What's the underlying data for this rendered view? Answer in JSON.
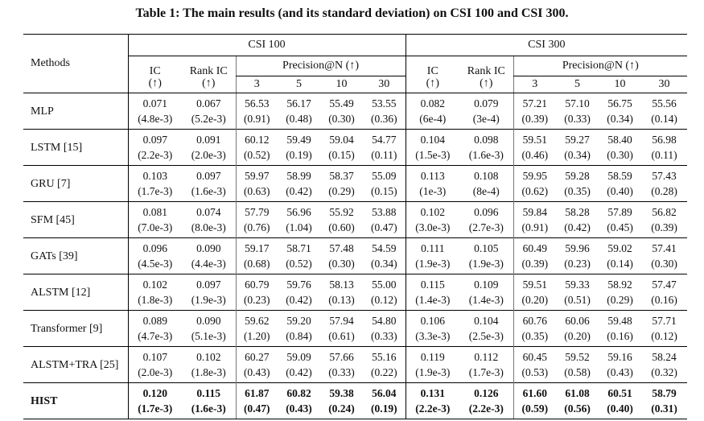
{
  "caption": "Table 1: The main results (and its standard deviation) on CSI 100 and CSI 300.",
  "header": {
    "methods": "Methods",
    "group1": "CSI 100",
    "group2": "CSI 300",
    "ic": "IC",
    "rank_ic": "Rank IC",
    "arrow": "(↑)",
    "precision": "Precision@N (↑)",
    "n_values": [
      "3",
      "5",
      "10",
      "30"
    ]
  },
  "rows": [
    {
      "method": "MLP",
      "bold": false,
      "mean": [
        "0.071",
        "0.067",
        "56.53",
        "56.17",
        "55.49",
        "53.55",
        "0.082",
        "0.079",
        "57.21",
        "57.10",
        "56.75",
        "55.56"
      ],
      "std": [
        "(4.8e-3)",
        "(5.2e-3)",
        "(0.91)",
        "(0.48)",
        "(0.30)",
        "(0.36)",
        "(6e-4)",
        "(3e-4)",
        "(0.39)",
        "(0.33)",
        "(0.34)",
        "(0.14)"
      ]
    },
    {
      "method": "LSTM [15]",
      "bold": false,
      "mean": [
        "0.097",
        "0.091",
        "60.12",
        "59.49",
        "59.04",
        "54.77",
        "0.104",
        "0.098",
        "59.51",
        "59.27",
        "58.40",
        "56.98"
      ],
      "std": [
        "(2.2e-3)",
        "(2.0e-3)",
        "(0.52)",
        "(0.19)",
        "(0.15)",
        "(0.11)",
        "(1.5e-3)",
        "(1.6e-3)",
        "(0.46)",
        "(0.34)",
        "(0.30)",
        "(0.11)"
      ]
    },
    {
      "method": "GRU [7]",
      "bold": false,
      "mean": [
        "0.103",
        "0.097",
        "59.97",
        "58.99",
        "58.37",
        "55.09",
        "0.113",
        "0.108",
        "59.95",
        "59.28",
        "58.59",
        "57.43"
      ],
      "std": [
        "(1.7e-3)",
        "(1.6e-3)",
        "(0.63)",
        "(0.42)",
        "(0.29)",
        "(0.15)",
        "(1e-3)",
        "(8e-4)",
        "(0.62)",
        "(0.35)",
        "(0.40)",
        "(0.28)"
      ]
    },
    {
      "method": "SFM [45]",
      "bold": false,
      "mean": [
        "0.081",
        "0.074",
        "57.79",
        "56.96",
        "55.92",
        "53.88",
        "0.102",
        "0.096",
        "59.84",
        "58.28",
        "57.89",
        "56.82"
      ],
      "std": [
        "(7.0e-3)",
        "(8.0e-3)",
        "(0.76)",
        "(1.04)",
        "(0.60)",
        "(0.47)",
        "(3.0e-3)",
        "(2.7e-3)",
        "(0.91)",
        "(0.42)",
        "(0.45)",
        "(0.39)"
      ]
    },
    {
      "method": "GATs [39]",
      "bold": false,
      "mean": [
        "0.096",
        "0.090",
        "59.17",
        "58.71",
        "57.48",
        "54.59",
        "0.111",
        "0.105",
        "60.49",
        "59.96",
        "59.02",
        "57.41"
      ],
      "std": [
        "(4.5e-3)",
        "(4.4e-3)",
        "(0.68)",
        "(0.52)",
        "(0.30)",
        "(0.34)",
        "(1.9e-3)",
        "(1.9e-3)",
        "(0.39)",
        "(0.23)",
        "(0.14)",
        "(0.30)"
      ]
    },
    {
      "method": "ALSTM [12]",
      "bold": false,
      "mean": [
        "0.102",
        "0.097",
        "60.79",
        "59.76",
        "58.13",
        "55.00",
        "0.115",
        "0.109",
        "59.51",
        "59.33",
        "58.92",
        "57.47"
      ],
      "std": [
        "(1.8e-3)",
        "(1.9e-3)",
        "(0.23)",
        "(0.42)",
        "(0.13)",
        "(0.12)",
        "(1.4e-3)",
        "(1.4e-3)",
        "(0.20)",
        "(0.51)",
        "(0.29)",
        "(0.16)"
      ]
    },
    {
      "method": "Transformer [9]",
      "bold": false,
      "mean": [
        "0.089",
        "0.090",
        "59.62",
        "59.20",
        "57.94",
        "54.80",
        "0.106",
        "0.104",
        "60.76",
        "60.06",
        "59.48",
        "57.71"
      ],
      "std": [
        "(4.7e-3)",
        "(5.1e-3)",
        "(1.20)",
        "(0.84)",
        "(0.61)",
        "(0.33)",
        "(3.3e-3)",
        "(2.5e-3)",
        "(0.35)",
        "(0.20)",
        "(0.16)",
        "(0.12)"
      ]
    },
    {
      "method": "ALSTM+TRA [25]",
      "bold": false,
      "mean": [
        "0.107",
        "0.102",
        "60.27",
        "59.09",
        "57.66",
        "55.16",
        "0.119",
        "0.112",
        "60.45",
        "59.52",
        "59.16",
        "58.24"
      ],
      "std": [
        "(2.0e-3)",
        "(1.8e-3)",
        "(0.43)",
        "(0.42)",
        "(0.33)",
        "(0.22)",
        "(1.9e-3)",
        "(1.7e-3)",
        "(0.53)",
        "(0.58)",
        "(0.43)",
        "(0.32)"
      ]
    },
    {
      "method": "HIST",
      "bold": true,
      "mean": [
        "0.120",
        "0.115",
        "61.87",
        "60.82",
        "59.38",
        "56.04",
        "0.131",
        "0.126",
        "61.60",
        "61.08",
        "60.51",
        "58.79"
      ],
      "std": [
        "(1.7e-3)",
        "(1.6e-3)",
        "(0.47)",
        "(0.43)",
        "(0.24)",
        "(0.19)",
        "(2.2e-3)",
        "(2.2e-3)",
        "(0.59)",
        "(0.56)",
        "(0.40)",
        "(0.31)"
      ]
    }
  ]
}
